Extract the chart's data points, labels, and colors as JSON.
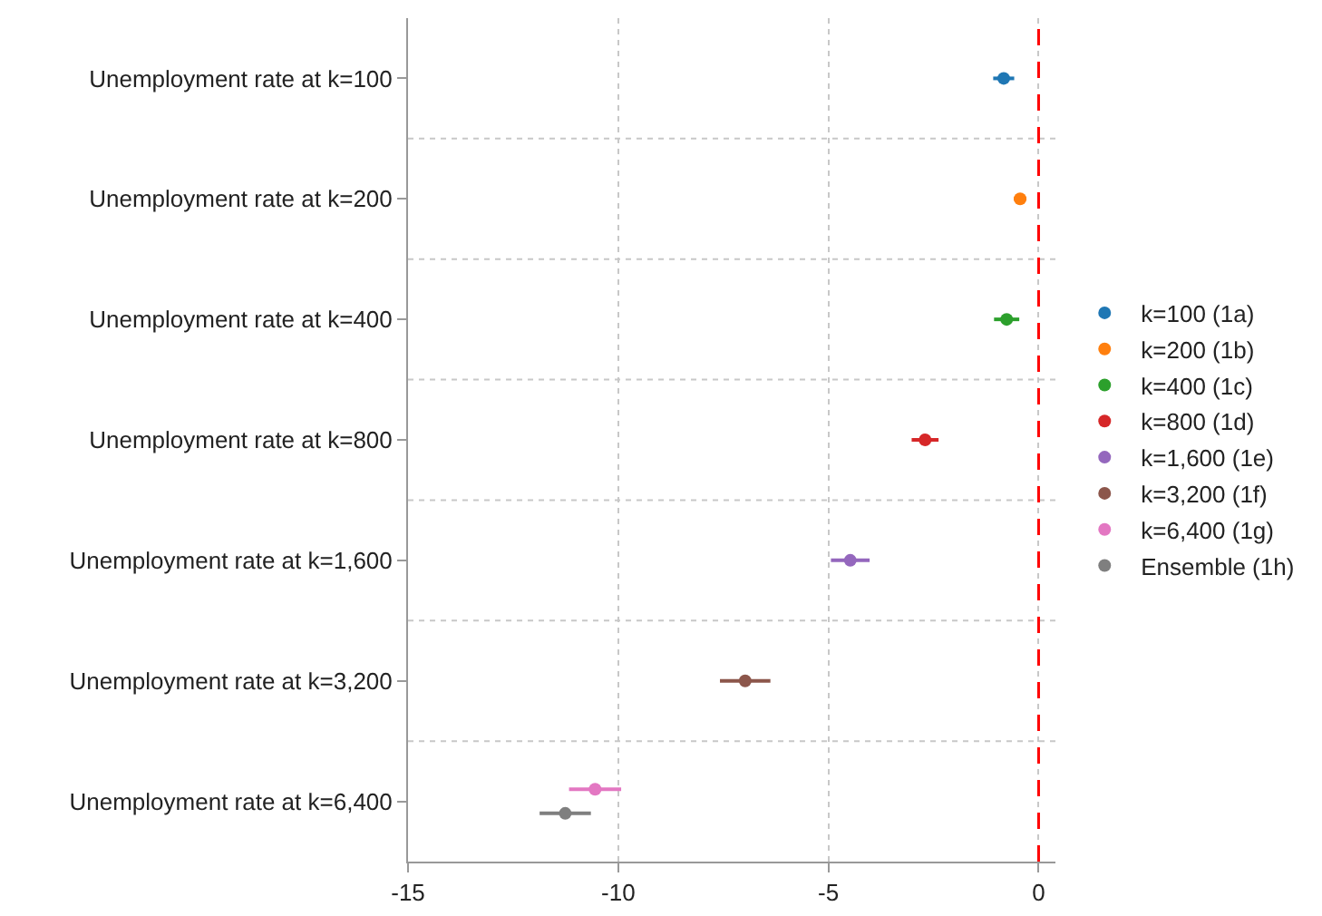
{
  "chart_data": {
    "type": "scatter",
    "orientation": "horizontal",
    "marker": "circle",
    "grid": true,
    "legend": "right",
    "xlim": [
      -15,
      0.4
    ],
    "xticks": [
      -15,
      -10,
      -5,
      0
    ],
    "categories": [
      "Unemployment rate at k=100",
      "Unemployment rate at k=200",
      "Unemployment rate at k=400",
      "Unemployment rate at k=800",
      "Unemployment rate at k=1,600",
      "Unemployment rate at k=3,200",
      "Unemployment rate at k=6,400"
    ],
    "series": [
      {
        "name": "k=100 (1a)",
        "color": "#1f77b4",
        "values": [
          -0.83,
          null,
          null,
          null,
          null,
          null,
          null
        ],
        "errors": [
          0.25,
          null,
          null,
          null,
          null,
          null,
          null
        ]
      },
      {
        "name": "k=200 (1b)",
        "color": "#ff7f0e",
        "values": [
          null,
          -0.44,
          null,
          null,
          null,
          null,
          null
        ],
        "errors": [
          null,
          0.15,
          null,
          null,
          null,
          null,
          null
        ]
      },
      {
        "name": "k=400 (1c)",
        "color": "#2ca02c",
        "values": [
          null,
          null,
          -0.76,
          null,
          null,
          null,
          null
        ],
        "errors": [
          null,
          null,
          0.3,
          null,
          null,
          null,
          null
        ]
      },
      {
        "name": "k=800 (1d)",
        "color": "#d62728",
        "values": [
          null,
          null,
          null,
          -2.7,
          null,
          null,
          null
        ],
        "errors": [
          null,
          null,
          null,
          0.32,
          null,
          null,
          null
        ]
      },
      {
        "name": "k=1,600 (1e)",
        "color": "#9467bd",
        "values": [
          null,
          null,
          null,
          null,
          -4.48,
          null,
          null
        ],
        "errors": [
          null,
          null,
          null,
          null,
          0.46,
          null,
          null
        ]
      },
      {
        "name": "k=3,200 (1f)",
        "color": "#8c564b",
        "values": [
          null,
          null,
          null,
          null,
          null,
          -6.98,
          null
        ],
        "errors": [
          null,
          null,
          null,
          null,
          null,
          0.6,
          null
        ]
      },
      {
        "name": "k=6,400 (1g)",
        "color": "#e377c2",
        "values": [
          null,
          null,
          null,
          null,
          null,
          null,
          -10.55
        ],
        "errors": [
          null,
          null,
          null,
          null,
          null,
          null,
          0.62
        ]
      },
      {
        "name": "Ensemble (1h)",
        "color": "#7f7f7f",
        "values": [
          null,
          null,
          null,
          null,
          null,
          null,
          -11.26
        ],
        "errors": [
          null,
          null,
          null,
          null,
          null,
          null,
          0.61
        ]
      }
    ],
    "ref_lines": [
      {
        "axis": "x",
        "value": 0,
        "color": "#ff0000",
        "line_style": "dashed"
      }
    ]
  }
}
